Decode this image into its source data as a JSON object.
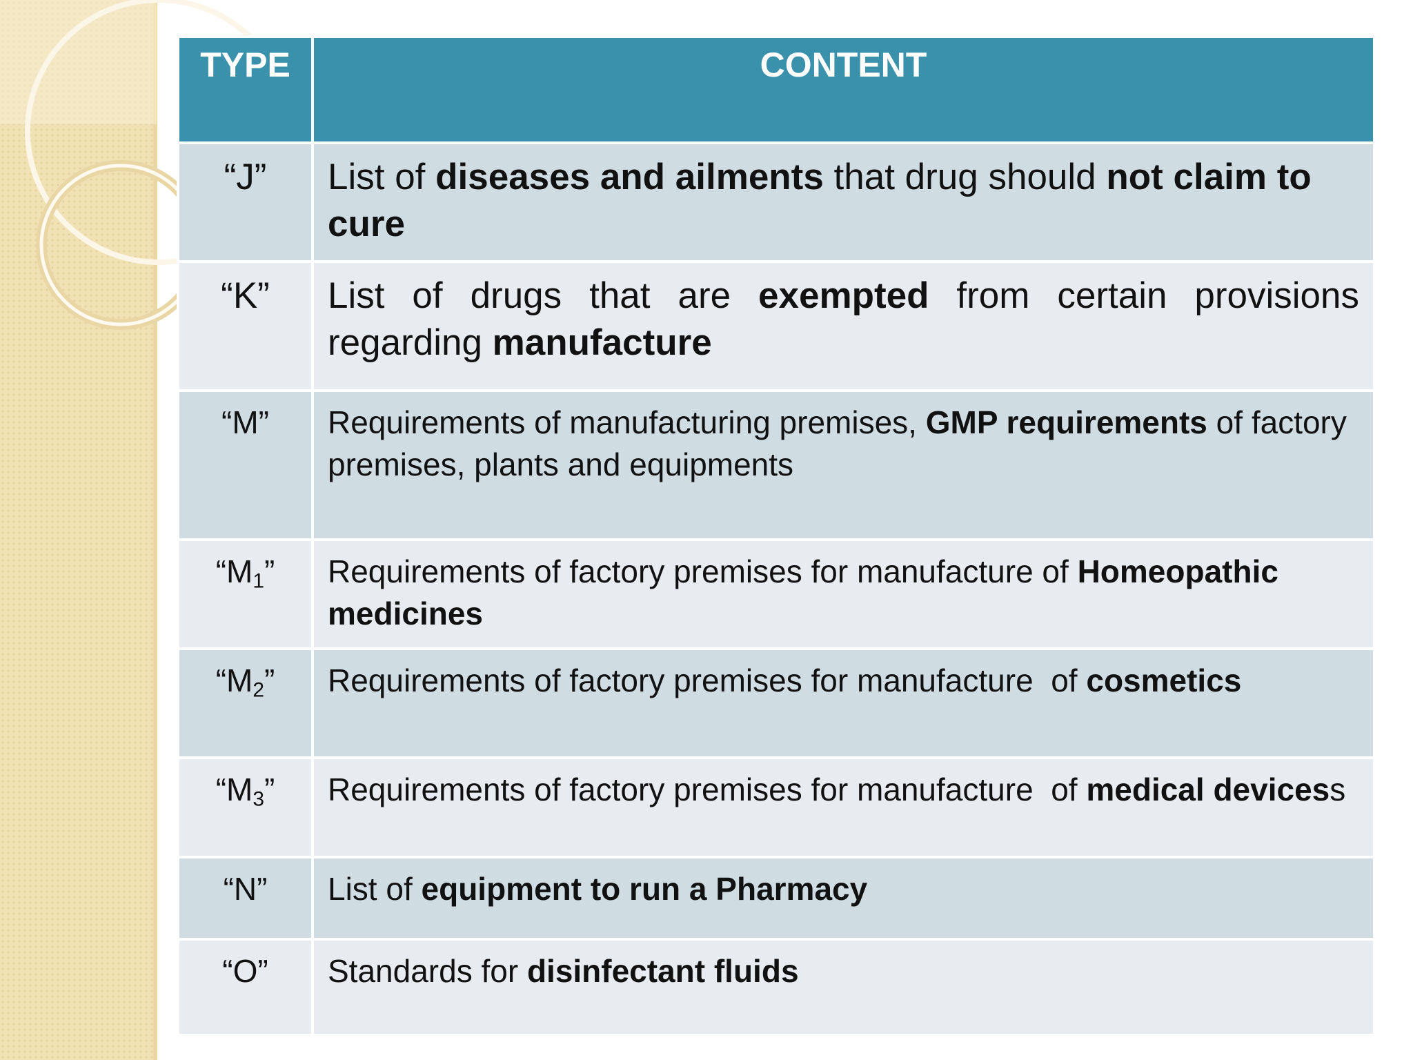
{
  "table": {
    "header": [
      "TYPE",
      "CONTENT"
    ],
    "rows": [
      {
        "type": [
          {
            "text": "“J”"
          }
        ],
        "content": [
          {
            "text": "List of ",
            "bold": false
          },
          {
            "text": "diseases and ailments",
            "bold": true
          },
          {
            "text": " that drug should ",
            "bold": false
          },
          {
            "text": "not claim to cure",
            "bold": true
          }
        ]
      },
      {
        "type": [
          {
            "text": "“K”"
          }
        ],
        "content": [
          {
            "text": "List of drugs that are ",
            "bold": false
          },
          {
            "text": "exempted",
            "bold": true
          },
          {
            "text": " from certain provisions regarding ",
            "bold": false
          },
          {
            "text": "manufacture",
            "bold": true
          }
        ]
      },
      {
        "type": [
          {
            "text": "“M”"
          }
        ],
        "content": [
          {
            "text": "Requirements of manufacturing premises, ",
            "bold": false
          },
          {
            "text": "GMP requirements",
            "bold": true
          },
          {
            "text": " of factory premises, plants and equipments",
            "bold": false
          }
        ]
      },
      {
        "type": [
          {
            "text": "“M"
          },
          {
            "text": "1",
            "sub": true
          },
          {
            "text": "”"
          }
        ],
        "content": [
          {
            "text": "Requirements of factory premises for manufacture of ",
            "bold": false
          },
          {
            "text": "Homeopathic medicines",
            "bold": true
          }
        ]
      },
      {
        "type": [
          {
            "text": "“M"
          },
          {
            "text": "2",
            "sub": true
          },
          {
            "text": "”"
          }
        ],
        "content": [
          {
            "text": "Requirements of factory premises for manufacture  of ",
            "bold": false
          },
          {
            "text": "cosmetics",
            "bold": true
          }
        ]
      },
      {
        "type": [
          {
            "text": "“M"
          },
          {
            "text": "3",
            "sub": true
          },
          {
            "text": "”"
          }
        ],
        "content": [
          {
            "text": "Requirements of factory premises for manufacture  of ",
            "bold": false
          },
          {
            "text": "medical devices",
            "bold": true
          },
          {
            "text": "s",
            "bold": false
          }
        ]
      },
      {
        "type": [
          {
            "text": "“N”"
          }
        ],
        "content": [
          {
            "text": "List of ",
            "bold": false
          },
          {
            "text": "equipment to run a Pharmacy",
            "bold": true
          }
        ]
      },
      {
        "type": [
          {
            "text": "“O”"
          }
        ],
        "content": [
          {
            "text": "Standards for ",
            "bold": false
          },
          {
            "text": "disinfectant fluids",
            "bold": true
          }
        ]
      }
    ]
  }
}
